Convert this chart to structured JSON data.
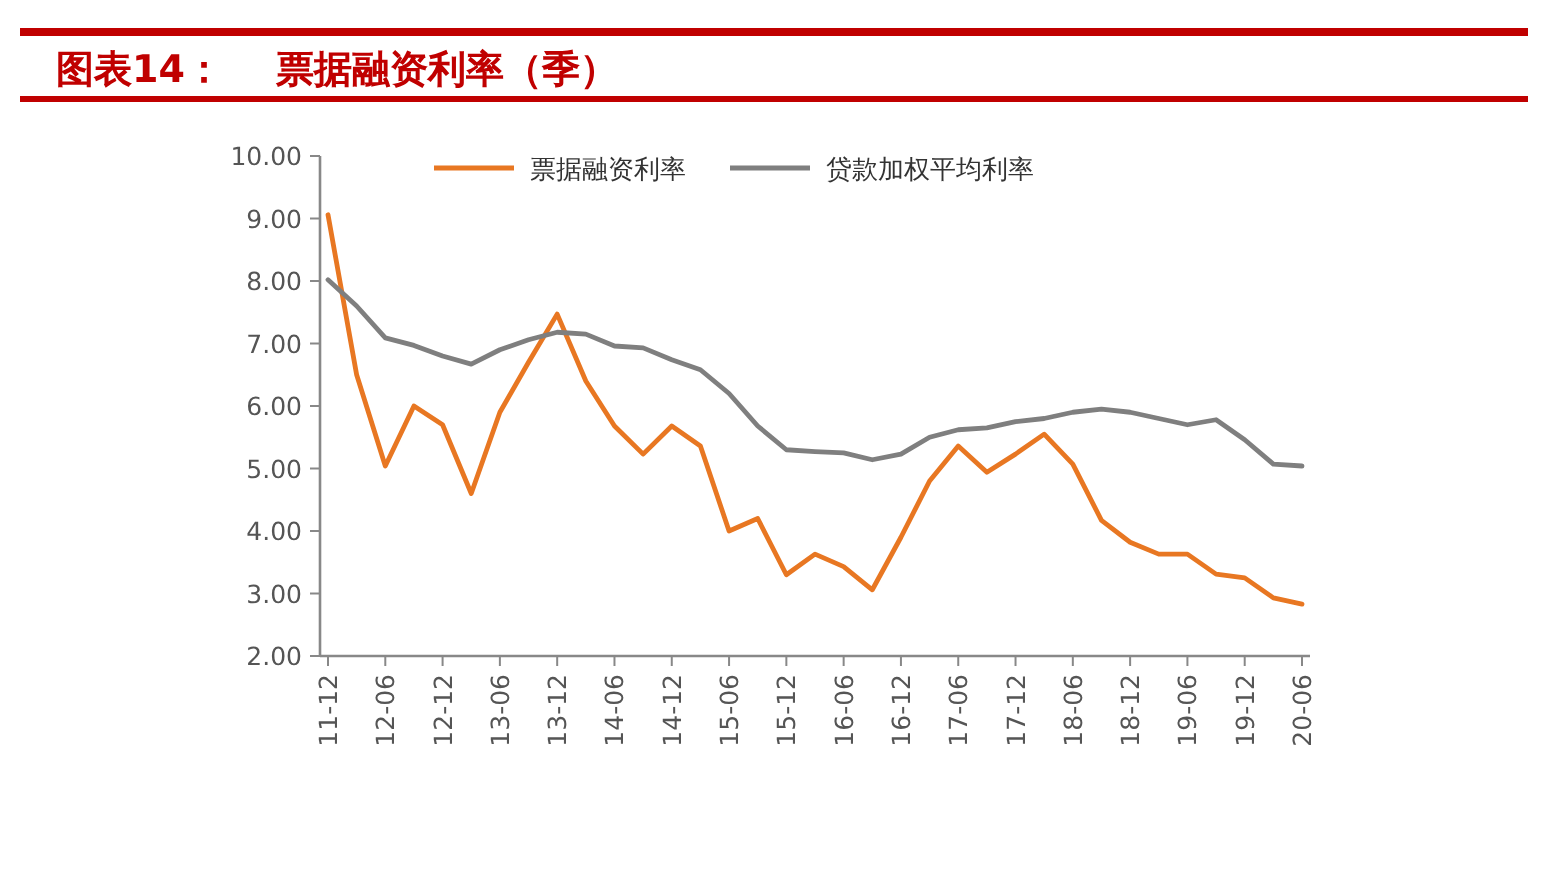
{
  "chart_data": {
    "type": "line",
    "title": "图表14：    票据融资利率（季）",
    "categories": [
      "11-12",
      null,
      "12-06",
      null,
      "12-12",
      null,
      "13-06",
      null,
      "13-12",
      null,
      "14-06",
      null,
      "14-12",
      null,
      "15-06",
      null,
      "15-12",
      null,
      "16-06",
      null,
      "16-12",
      null,
      "17-06",
      null,
      "17-12",
      null,
      "18-06",
      null,
      "18-12",
      null,
      "19-06",
      null,
      "19-12",
      null,
      "20-06"
    ],
    "series": [
      {
        "name": "票据融资利率",
        "color": "#e87722",
        "values": [
          9.06,
          6.5,
          5.04,
          6.0,
          5.7,
          4.6,
          5.9,
          6.7,
          7.47,
          6.4,
          5.68,
          5.23,
          5.68,
          5.36,
          4.0,
          4.2,
          3.3,
          3.63,
          3.43,
          3.06,
          3.9,
          4.8,
          5.36,
          4.94,
          5.23,
          5.55,
          5.07,
          4.17,
          3.82,
          3.63,
          3.63,
          3.31,
          3.25,
          2.93,
          2.83
        ]
      },
      {
        "name": "贷款加权平均利率",
        "color": "#7f7f7f",
        "values": [
          8.02,
          7.6,
          7.09,
          6.97,
          6.8,
          6.67,
          6.9,
          7.06,
          7.18,
          7.15,
          6.96,
          6.93,
          6.74,
          6.58,
          6.2,
          5.68,
          5.3,
          5.27,
          5.25,
          5.14,
          5.23,
          5.5,
          5.62,
          5.65,
          5.75,
          5.8,
          5.9,
          5.95,
          5.9,
          5.8,
          5.7,
          5.78,
          5.46,
          5.07,
          5.04
        ]
      }
    ],
    "ylim": [
      2,
      10
    ],
    "yticks": [
      {
        "value": 2,
        "label": "2.00"
      },
      {
        "value": 3,
        "label": "3.00"
      },
      {
        "value": 4,
        "label": "4.00"
      },
      {
        "value": 5,
        "label": "5.00"
      },
      {
        "value": 6,
        "label": "6.00"
      },
      {
        "value": 7,
        "label": "7.00"
      },
      {
        "value": 8,
        "label": "8.00"
      },
      {
        "value": 9,
        "label": "9.00"
      },
      {
        "value": 10,
        "label": "10.00"
      }
    ],
    "grid": false,
    "legend": "top",
    "line_style": "solid"
  }
}
